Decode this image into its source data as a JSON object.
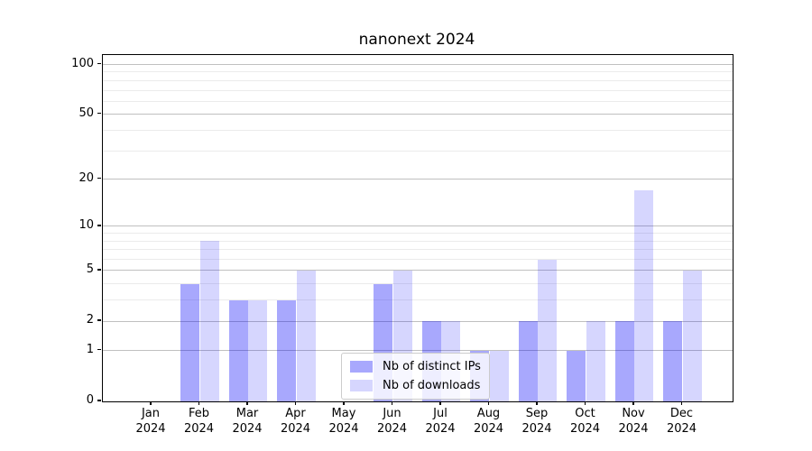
{
  "figure": {
    "title": "nanonext 2024"
  },
  "chart_data": {
    "type": "bar",
    "title": "nanonext 2024",
    "categories": [
      "Jan",
      "Feb",
      "Mar",
      "Apr",
      "May",
      "Jun",
      "Jul",
      "Aug",
      "Sep",
      "Oct",
      "Nov",
      "Dec"
    ],
    "category_year": "2024",
    "series": [
      {
        "name": "Nb of distinct IPs",
        "key": "distinct-ips",
        "color": "rgba(0,0,250,0.34)",
        "values": [
          0,
          4,
          3,
          3,
          0,
          4,
          2,
          1,
          2,
          1,
          2,
          2
        ]
      },
      {
        "name": "Nb of downloads",
        "key": "downloads",
        "color": "rgba(0,0,250,0.16)",
        "values": [
          0,
          8,
          3,
          5,
          0,
          5,
          2,
          1,
          6,
          2,
          17,
          5
        ]
      }
    ],
    "y_scale": "log1p",
    "y_axis": {
      "major_ticks": [
        0,
        1,
        2,
        5,
        10,
        20,
        50,
        100
      ],
      "minor_ticks": [
        3,
        4,
        6,
        7,
        8,
        9,
        30,
        40,
        60,
        70,
        80,
        90
      ],
      "ylim": [
        0,
        114
      ]
    },
    "xlabel": "",
    "ylabel": "",
    "grid": true,
    "legend": {
      "position": "bottom-center",
      "entries": [
        "Nb of distinct IPs",
        "Nb of downloads"
      ]
    }
  }
}
